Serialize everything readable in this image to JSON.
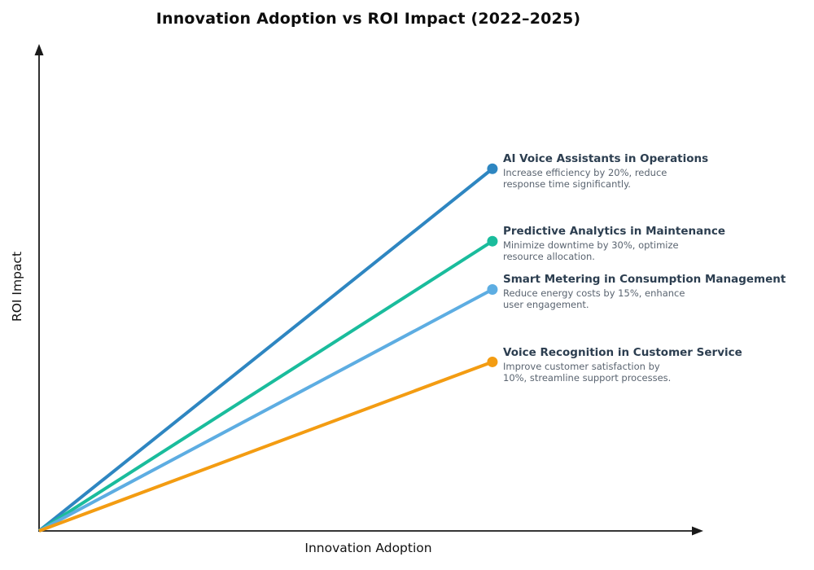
{
  "title": "Innovation Adoption vs ROI Impact (2022–2025)",
  "x_axis_label": "Innovation Adoption",
  "y_axis_label": "ROI Impact",
  "colors": {
    "background": "#ffffff",
    "axis": "#1a1a1a",
    "series_name_text": "#2c3e50",
    "series_desc_text": "#5a6470"
  },
  "chart_data": {
    "type": "line",
    "title": "Innovation Adoption vs ROI Impact (2022–2025)",
    "xlabel": "Innovation Adoption",
    "ylabel": "ROI Impact",
    "axis_style": "arrowhead axes, no ticks, no tick labels, no gridlines, qualitative normalized scale",
    "xlim_normalized": [
      0,
      1
    ],
    "ylim_normalized": [
      0,
      1
    ],
    "legend": "inline labels at line endpoints, right side",
    "series": [
      {
        "name": "AI Voice Assistants in Operations",
        "desc_lines": [
          "Increase efficiency by 20%, reduce",
          "response time significantly."
        ],
        "color": "#2E86C1",
        "x": [
          0,
          0.68
        ],
        "y": [
          0,
          0.75
        ]
      },
      {
        "name": "Predictive Analytics in Maintenance",
        "desc_lines": [
          "Minimize downtime by 30%, optimize",
          "resource allocation."
        ],
        "color": "#1ABC9C",
        "x": [
          0,
          0.68
        ],
        "y": [
          0,
          0.6
        ]
      },
      {
        "name": "Smart Metering in Consumption Management",
        "desc_lines": [
          "Reduce energy costs by 15%, enhance",
          "user engagement."
        ],
        "color": "#5DADE2",
        "x": [
          0,
          0.68
        ],
        "y": [
          0,
          0.5
        ]
      },
      {
        "name": "Voice Recognition in Customer Service",
        "desc_lines": [
          "Improve customer satisfaction by",
          "10%, streamline support processes."
        ],
        "color": "#F39C12",
        "x": [
          0,
          0.68
        ],
        "y": [
          0,
          0.35
        ]
      }
    ]
  }
}
